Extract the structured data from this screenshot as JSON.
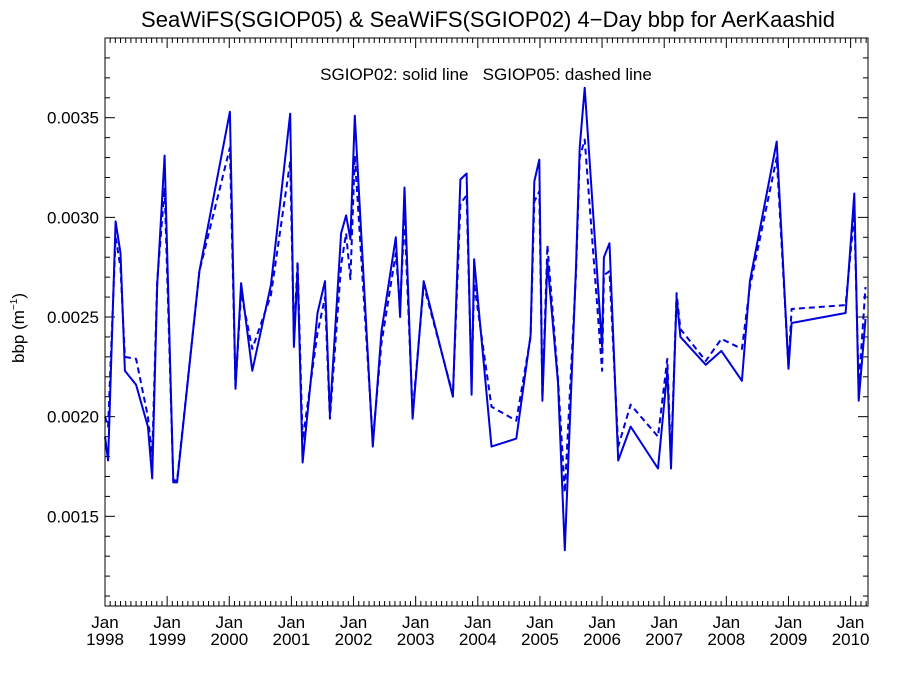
{
  "chart_data": {
    "type": "line",
    "title": "SeaWiFS(SGIOP05) & SeaWiFS(SGIOP02) 4−Day bbp for AerKaashid",
    "annotation": "SGIOP02: solid line   SGIOP05: dashed line",
    "ylabel_base": "bbp (m",
    "ylabel_sup": "−1",
    "ylabel_close": ")",
    "xlim": [
      1998.0,
      2010.28
    ],
    "ylim": [
      0.00105,
      0.0039
    ],
    "yticks": [
      {
        "value": 0.0015,
        "label": "0.0015"
      },
      {
        "value": 0.002,
        "label": "0.0020"
      },
      {
        "value": 0.0025,
        "label": "0.0025"
      },
      {
        "value": 0.003,
        "label": "0.0030"
      },
      {
        "value": 0.0035,
        "label": "0.0035"
      }
    ],
    "xticks": [
      {
        "value": 1998,
        "month": "Jan",
        "year": "1998"
      },
      {
        "value": 1999,
        "month": "Jan",
        "year": "1999"
      },
      {
        "value": 2000,
        "month": "Jan",
        "year": "2000"
      },
      {
        "value": 2001,
        "month": "Jan",
        "year": "2001"
      },
      {
        "value": 2002,
        "month": "Jan",
        "year": "2002"
      },
      {
        "value": 2003,
        "month": "Jan",
        "year": "2003"
      },
      {
        "value": 2004,
        "month": "Jan",
        "year": "2004"
      },
      {
        "value": 2005,
        "month": "Jan",
        "year": "2005"
      },
      {
        "value": 2006,
        "month": "Jan",
        "year": "2006"
      },
      {
        "value": 2007,
        "month": "Jan",
        "year": "2007"
      },
      {
        "value": 2008,
        "month": "Jan",
        "year": "2008"
      },
      {
        "value": 2009,
        "month": "Jan",
        "year": "2009"
      },
      {
        "value": 2010,
        "month": "Jan",
        "year": "2010"
      }
    ],
    "series": [
      {
        "name": "SGIOP02",
        "style": "solid",
        "color": "#0000dd",
        "points": [
          [
            1998.0,
            0.0019
          ],
          [
            1998.05,
            0.00178
          ],
          [
            1998.17,
            0.00298
          ],
          [
            1998.25,
            0.00282
          ],
          [
            1998.32,
            0.00223
          ],
          [
            1998.5,
            0.00216
          ],
          [
            1998.69,
            0.00195
          ],
          [
            1998.76,
            0.00169
          ],
          [
            1998.84,
            0.00266
          ],
          [
            1998.96,
            0.00331
          ],
          [
            1999.1,
            0.00167
          ],
          [
            1999.16,
            0.00167
          ],
          [
            1999.52,
            0.00273
          ],
          [
            2000.01,
            0.00353
          ],
          [
            2000.1,
            0.00214
          ],
          [
            2000.19,
            0.00267
          ],
          [
            2000.37,
            0.00223
          ],
          [
            2000.67,
            0.00266
          ],
          [
            2000.98,
            0.00352
          ],
          [
            2001.04,
            0.00235
          ],
          [
            2001.1,
            0.00274
          ],
          [
            2001.18,
            0.00177
          ],
          [
            2001.42,
            0.00252
          ],
          [
            2001.54,
            0.00268
          ],
          [
            2001.62,
            0.00201
          ],
          [
            2001.8,
            0.00292
          ],
          [
            2001.88,
            0.00301
          ],
          [
            2001.95,
            0.00289
          ],
          [
            2002.02,
            0.00351
          ],
          [
            2002.31,
            0.00185
          ],
          [
            2002.45,
            0.00243
          ],
          [
            2002.68,
            0.0029
          ],
          [
            2002.75,
            0.0025
          ],
          [
            2002.82,
            0.00315
          ],
          [
            2002.95,
            0.00199
          ],
          [
            2003.13,
            0.00268
          ],
          [
            2003.6,
            0.0021
          ],
          [
            2003.72,
            0.00319
          ],
          [
            2003.82,
            0.00322
          ],
          [
            2003.9,
            0.00211
          ],
          [
            2003.94,
            0.00279
          ],
          [
            2004.22,
            0.00185
          ],
          [
            2004.62,
            0.00189
          ],
          [
            2004.85,
            0.00241
          ],
          [
            2004.91,
            0.00318
          ],
          [
            2004.99,
            0.00329
          ],
          [
            2005.04,
            0.00208
          ],
          [
            2005.12,
            0.00278
          ],
          [
            2005.29,
            0.00217
          ],
          [
            2005.4,
            0.00133
          ],
          [
            2005.58,
            0.00275
          ],
          [
            2005.64,
            0.00335
          ],
          [
            2005.72,
            0.00365
          ],
          [
            2006.0,
            0.00235
          ],
          [
            2006.03,
            0.0028
          ],
          [
            2006.12,
            0.00287
          ],
          [
            2006.26,
            0.00178
          ],
          [
            2006.46,
            0.00195
          ],
          [
            2006.9,
            0.00174
          ],
          [
            2007.05,
            0.00223
          ],
          [
            2007.11,
            0.00174
          ],
          [
            2007.2,
            0.0026
          ],
          [
            2007.26,
            0.0024
          ],
          [
            2007.67,
            0.00226
          ],
          [
            2007.92,
            0.00233
          ],
          [
            2008.25,
            0.00218
          ],
          [
            2008.38,
            0.00268
          ],
          [
            2008.81,
            0.00338
          ],
          [
            2009.0,
            0.00224
          ],
          [
            2009.05,
            0.00247
          ],
          [
            2009.92,
            0.00252
          ],
          [
            2010.06,
            0.00312
          ],
          [
            2010.13,
            0.00208
          ],
          [
            2010.24,
            0.00249
          ]
        ]
      },
      {
        "name": "SGIOP05",
        "style": "dashed",
        "color": "#0000dd",
        "points": [
          [
            1998.0,
            0.002
          ],
          [
            1998.05,
            0.00195
          ],
          [
            1998.17,
            0.0029
          ],
          [
            1998.25,
            0.00275
          ],
          [
            1998.32,
            0.0023
          ],
          [
            1998.5,
            0.00229
          ],
          [
            1998.69,
            0.002
          ],
          [
            1998.76,
            0.0018
          ],
          [
            1998.84,
            0.00268
          ],
          [
            1998.96,
            0.00315
          ],
          [
            1999.1,
            0.00168
          ],
          [
            1999.16,
            0.00168
          ],
          [
            1999.52,
            0.00273
          ],
          [
            2000.01,
            0.00335
          ],
          [
            2000.1,
            0.00215
          ],
          [
            2000.19,
            0.00262
          ],
          [
            2000.37,
            0.00234
          ],
          [
            2000.67,
            0.00261
          ],
          [
            2000.98,
            0.00328
          ],
          [
            2001.04,
            0.0024
          ],
          [
            2001.1,
            0.00278
          ],
          [
            2001.18,
            0.00188
          ],
          [
            2001.42,
            0.00242
          ],
          [
            2001.54,
            0.0026
          ],
          [
            2001.62,
            0.00199
          ],
          [
            2001.8,
            0.00276
          ],
          [
            2001.88,
            0.00292
          ],
          [
            2001.95,
            0.00269
          ],
          [
            2002.02,
            0.00331
          ],
          [
            2002.31,
            0.00188
          ],
          [
            2002.45,
            0.00237
          ],
          [
            2002.68,
            0.00282
          ],
          [
            2002.75,
            0.00255
          ],
          [
            2002.82,
            0.003
          ],
          [
            2002.95,
            0.00202
          ],
          [
            2003.13,
            0.00266
          ],
          [
            2003.6,
            0.00211
          ],
          [
            2003.72,
            0.00307
          ],
          [
            2003.82,
            0.00311
          ],
          [
            2003.9,
            0.00216
          ],
          [
            2003.94,
            0.00267
          ],
          [
            2004.22,
            0.00205
          ],
          [
            2004.62,
            0.00198
          ],
          [
            2004.85,
            0.0024
          ],
          [
            2004.91,
            0.00308
          ],
          [
            2004.99,
            0.00313
          ],
          [
            2005.04,
            0.0021
          ],
          [
            2005.12,
            0.00286
          ],
          [
            2005.29,
            0.00219
          ],
          [
            2005.4,
            0.00162
          ],
          [
            2005.58,
            0.00272
          ],
          [
            2005.64,
            0.0033
          ],
          [
            2005.72,
            0.00339
          ],
          [
            2006.0,
            0.00223
          ],
          [
            2006.03,
            0.00271
          ],
          [
            2006.12,
            0.00273
          ],
          [
            2006.26,
            0.00185
          ],
          [
            2006.46,
            0.00206
          ],
          [
            2006.9,
            0.0019
          ],
          [
            2007.05,
            0.00229
          ],
          [
            2007.11,
            0.00178
          ],
          [
            2007.2,
            0.00262
          ],
          [
            2007.26,
            0.00244
          ],
          [
            2007.67,
            0.00228
          ],
          [
            2007.92,
            0.00239
          ],
          [
            2008.25,
            0.00234
          ],
          [
            2008.38,
            0.00265
          ],
          [
            2008.81,
            0.0033
          ],
          [
            2009.0,
            0.00225
          ],
          [
            2009.05,
            0.00254
          ],
          [
            2009.92,
            0.00256
          ],
          [
            2010.06,
            0.00302
          ],
          [
            2010.13,
            0.00215
          ],
          [
            2010.24,
            0.00265
          ]
        ]
      }
    ]
  }
}
